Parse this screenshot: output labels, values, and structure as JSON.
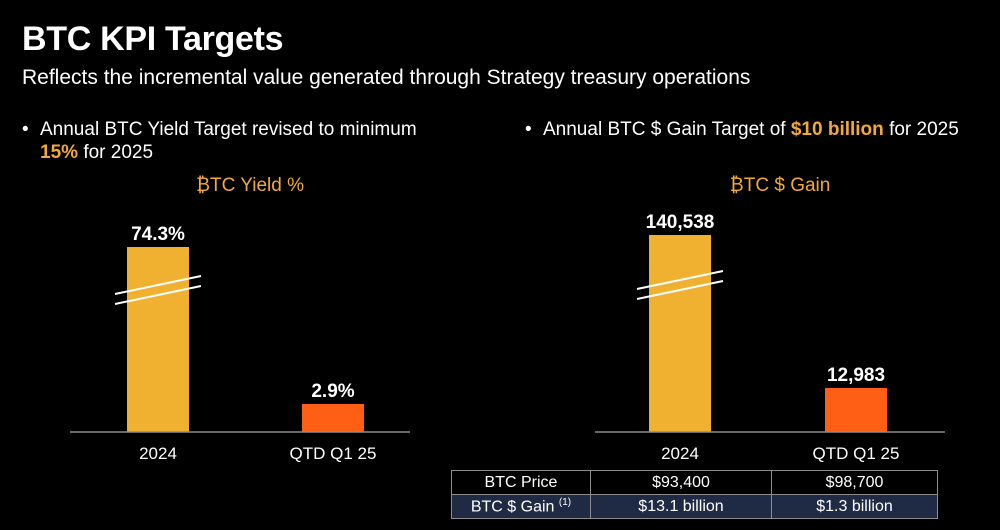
{
  "header": {
    "title": "BTC KPI Targets",
    "subtitle": "Reflects the incremental value generated through Strategy treasury operations"
  },
  "bullets": {
    "left": {
      "prefix": "Annual BTC Yield Target revised to minimum",
      "highlight": "15%",
      "suffix": "for 2025"
    },
    "right": {
      "prefix": "Annual BTC $ Gain Target of",
      "highlight": "$10 billion",
      "suffix": "for 2025"
    }
  },
  "colors": {
    "accent_orange_text": "#f2a93b",
    "bar_2024": "#f0b130",
    "bar_q1": "#ff5f15",
    "table_row2_bg": "#1f2a44"
  },
  "chart_data": [
    {
      "type": "bar",
      "title": "₿TC Yield %",
      "categories": [
        "2024",
        "QTD Q1 25"
      ],
      "values": [
        74.3,
        2.9
      ],
      "value_labels": [
        "74.3%",
        "2.9%"
      ],
      "axis_break": true,
      "bar_colors": [
        "#f0b130",
        "#ff5f15"
      ]
    },
    {
      "type": "bar",
      "title": "₿TC $ Gain",
      "categories": [
        "2024",
        "QTD Q1 25"
      ],
      "values": [
        140538,
        12983
      ],
      "value_labels": [
        "140,538",
        "12,983"
      ],
      "axis_break": true,
      "bar_colors": [
        "#f0b130",
        "#ff5f15"
      ]
    }
  ],
  "price_table": {
    "rows": [
      {
        "label": "BTC Price",
        "note": "",
        "values": [
          "$93,400",
          "$98,700"
        ]
      },
      {
        "label": "BTC $ Gain",
        "note": "(1)",
        "values": [
          "$13.1 billion",
          "$1.3 billion"
        ]
      }
    ]
  }
}
